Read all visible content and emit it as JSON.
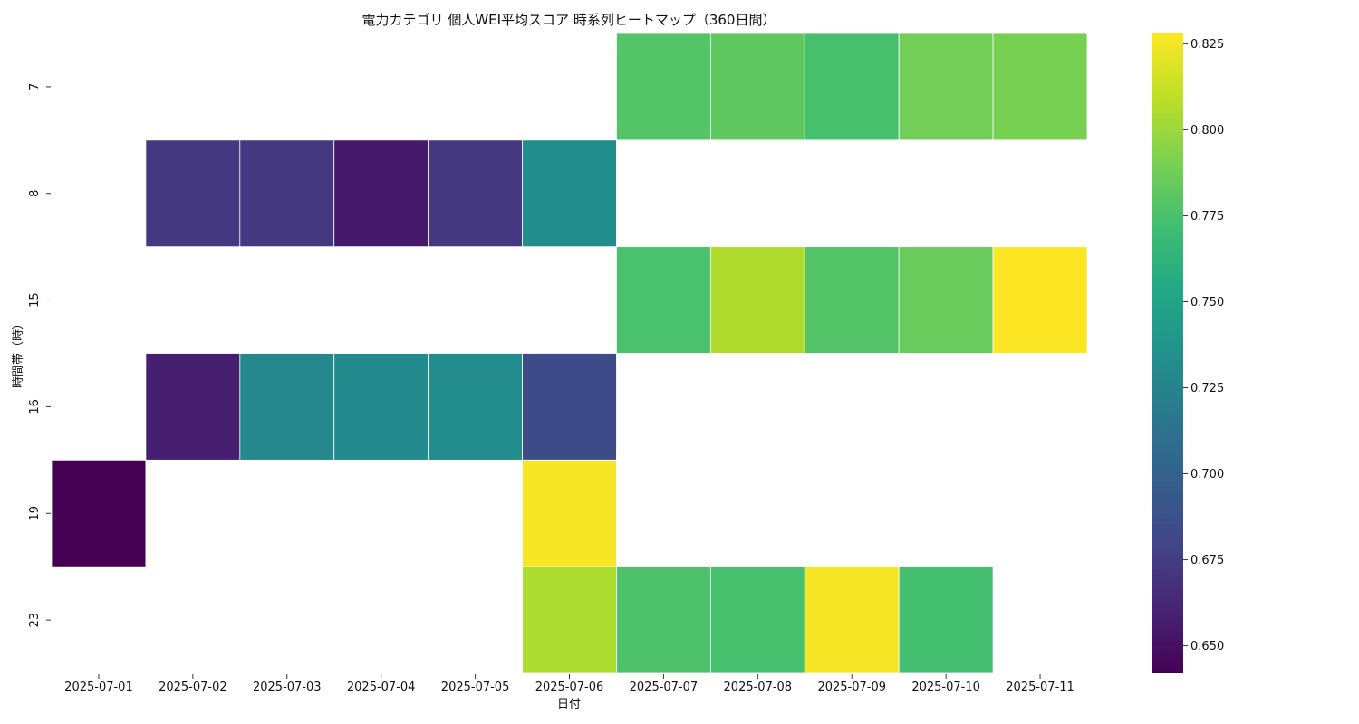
{
  "chart_data": {
    "type": "heatmap",
    "title": "電力カテゴリ 個人WEI平均スコア 時系列ヒートマップ（360日間）",
    "xlabel": "日付",
    "ylabel": "時間帯（時）",
    "x_categories": [
      "2025-07-01",
      "2025-07-02",
      "2025-07-03",
      "2025-07-04",
      "2025-07-05",
      "2025-07-06",
      "2025-07-07",
      "2025-07-08",
      "2025-07-09",
      "2025-07-10",
      "2025-07-11"
    ],
    "y_categories": [
      "7",
      "8",
      "15",
      "16",
      "19",
      "23"
    ],
    "values": [
      [
        null,
        null,
        null,
        null,
        null,
        null,
        0.778,
        0.782,
        0.774,
        0.788,
        0.79
      ],
      [
        null,
        0.672,
        0.672,
        0.655,
        0.672,
        0.733,
        null,
        null,
        null,
        null,
        null
      ],
      [
        null,
        null,
        null,
        null,
        null,
        null,
        0.775,
        0.806,
        0.778,
        0.785,
        0.828
      ],
      [
        null,
        0.658,
        0.728,
        0.73,
        0.732,
        0.685,
        null,
        null,
        null,
        null,
        null
      ],
      [
        0.642,
        null,
        null,
        null,
        null,
        0.826,
        null,
        null,
        null,
        null,
        null
      ],
      [
        null,
        null,
        null,
        null,
        null,
        0.805,
        0.776,
        0.774,
        0.826,
        0.773,
        null
      ]
    ],
    "colorbar": {
      "colormap": "viridis",
      "range": [
        0.642,
        0.828
      ],
      "ticks": [
        0.65,
        0.675,
        0.7,
        0.725,
        0.75,
        0.775,
        0.8,
        0.825
      ],
      "tick_labels": [
        "0.650",
        "0.675",
        "0.700",
        "0.725",
        "0.750",
        "0.775",
        "0.800",
        "0.825"
      ]
    },
    "grid": false
  }
}
